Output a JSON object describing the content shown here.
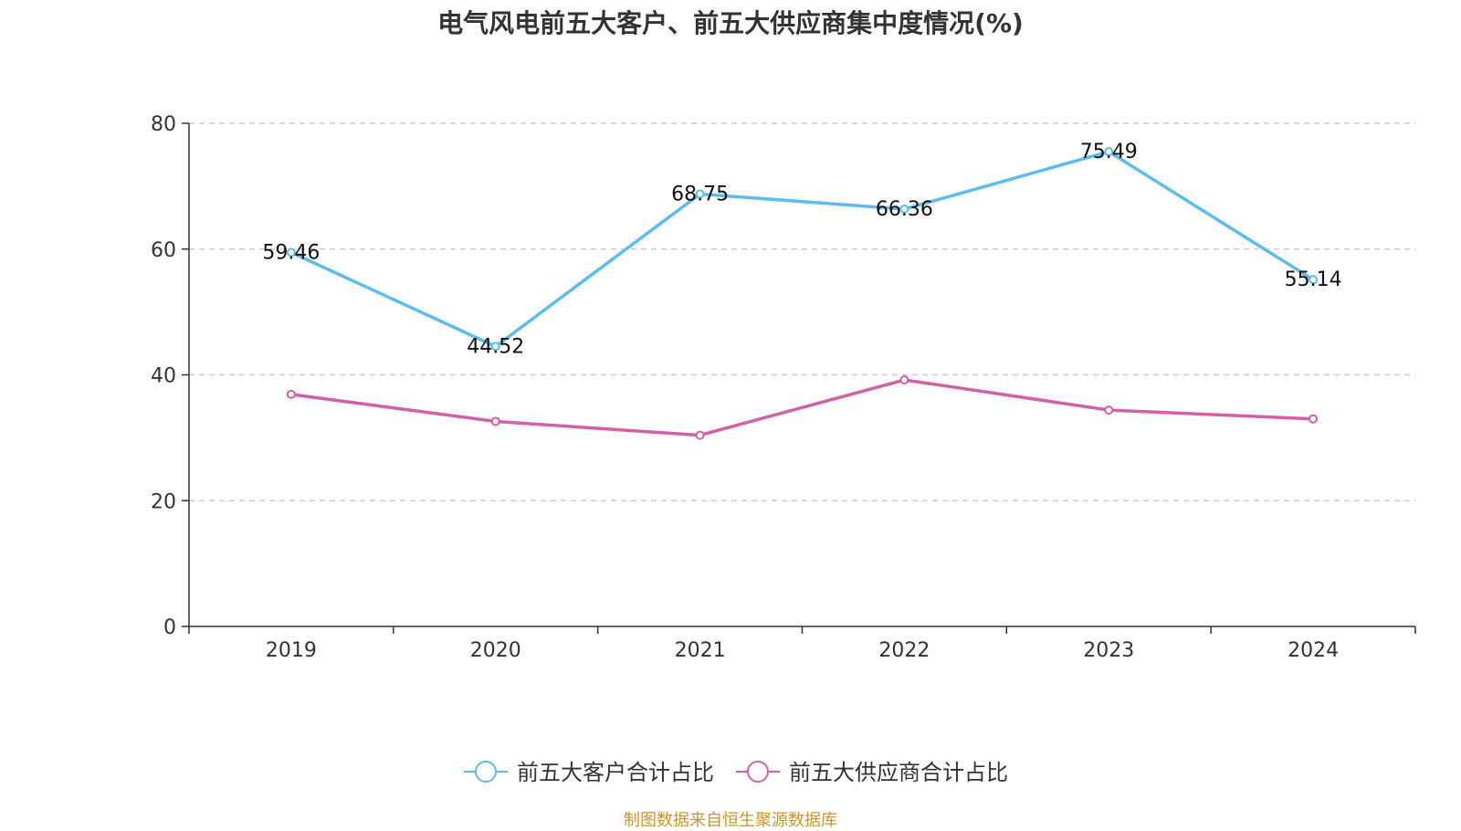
{
  "title": "电气风电前五大客户、前五大供应商集中度情况(%)",
  "source": "制图数据来自恒生聚源数据库",
  "chart_data": {
    "type": "line",
    "categories": [
      "2019",
      "2020",
      "2021",
      "2022",
      "2023",
      "2024"
    ],
    "series": [
      {
        "name": "前五大客户合计占比",
        "color": "#5bbcf0",
        "values": [
          59.46,
          44.52,
          68.75,
          66.36,
          75.49,
          55.14
        ],
        "labels": [
          "59.46",
          "44.52",
          "68.75",
          "66.36",
          "75.49",
          "55.14"
        ]
      },
      {
        "name": "前五大供应商合计占比",
        "color": "#d260a8",
        "values": [
          36.9,
          32.6,
          30.4,
          39.2,
          34.4,
          33.0
        ],
        "labels": []
      }
    ],
    "yticks": [
      "0",
      "20",
      "40",
      "60",
      "80"
    ],
    "ylim": [
      0,
      80
    ],
    "grid": true,
    "legend_position": "bottom"
  }
}
